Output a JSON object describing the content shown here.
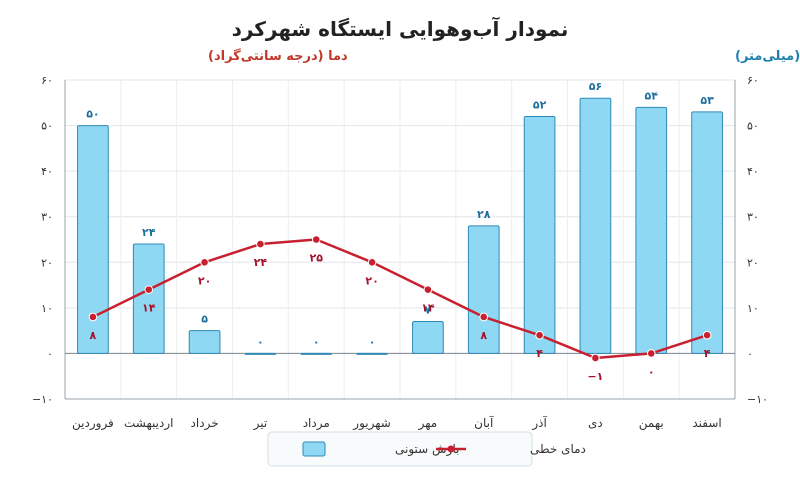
{
  "chart_data": {
    "type": "bar",
    "title": "نمودار آب‌وهوایی ایستگاه شهرکرد",
    "left_axis_title": "دما (درجه سانتی‌گراد)",
    "right_axis_title": "بارش (میلی‌متر)",
    "categories": [
      "فروردین",
      "اردیبهشت",
      "خرداد",
      "تیر",
      "مرداد",
      "شهریور",
      "مهر",
      "آبان",
      "آذر",
      "دی",
      "بهمن",
      "اسفند"
    ],
    "ylim": [
      -10,
      60
    ],
    "yticks": [
      -10,
      0,
      10,
      20,
      30,
      40,
      50,
      60
    ],
    "ytick_labels": [
      "−۱۰",
      "۰",
      "۱۰",
      "۲۰",
      "۳۰",
      "۴۰",
      "۵۰",
      "۶۰"
    ],
    "series": [
      {
        "name": "بارش ستونی",
        "kind": "bar",
        "values": [
          50,
          24,
          5,
          0,
          0,
          0,
          7,
          28,
          52,
          56,
          54,
          53
        ],
        "labels": [
          "۵۰",
          "۲۴",
          "۵",
          "۰",
          "۰",
          "۰",
          "۷",
          "۲۸",
          "۵۲",
          "۵۶",
          "۵۴",
          "۵۳"
        ],
        "color": "#8fd8f3"
      },
      {
        "name": "دمای خطی",
        "kind": "line",
        "values": [
          8,
          14,
          20,
          24,
          25,
          20,
          14,
          8,
          4,
          -1,
          0,
          4
        ],
        "labels": [
          "۸",
          "۱۴",
          "۲۰",
          "۲۴",
          "۲۵",
          "۲۰",
          "۱۴",
          "۸",
          "۴",
          "−۱",
          "۰",
          "۴"
        ],
        "color": "#c8202f"
      }
    ],
    "legend_position": "bottom-center",
    "grid": true
  }
}
